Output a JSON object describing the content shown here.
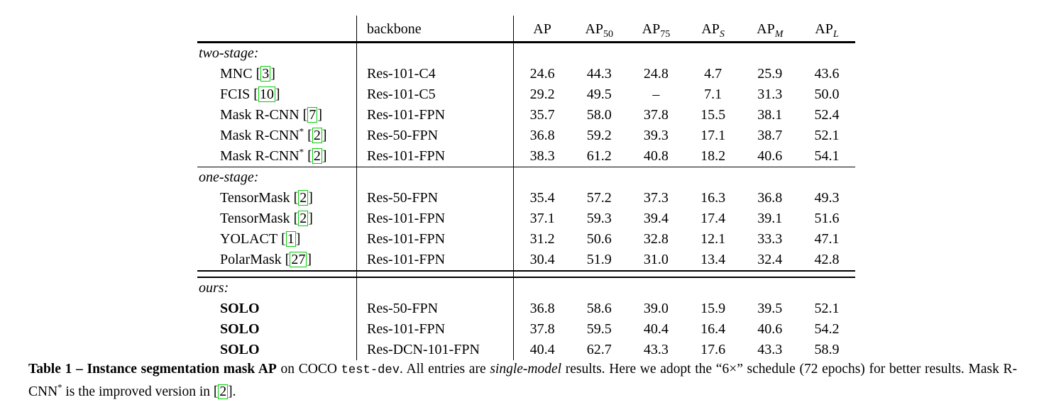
{
  "table": {
    "cite_open": "[",
    "cite_close": "]",
    "header": {
      "backbone": "backbone",
      "metrics": [
        {
          "base": "AP",
          "sub": ""
        },
        {
          "base": "AP",
          "sub": "50"
        },
        {
          "base": "AP",
          "sub": "75"
        },
        {
          "base": "AP",
          "sub": "S"
        },
        {
          "base": "AP",
          "sub": "M"
        },
        {
          "base": "AP",
          "sub": "L"
        }
      ]
    },
    "rows": [
      {
        "type": "section",
        "label": "two-stage:"
      },
      {
        "type": "data",
        "name": "MNC",
        "sup": "",
        "cite": "3",
        "backbone": "Res-101-C4",
        "v": [
          "24.6",
          "44.3",
          "24.8",
          "4.7",
          "25.9",
          "43.6"
        ]
      },
      {
        "type": "data",
        "name": "FCIS",
        "sup": "",
        "cite": "10",
        "backbone": "Res-101-C5",
        "v": [
          "29.2",
          "49.5",
          "–",
          "7.1",
          "31.3",
          "50.0"
        ]
      },
      {
        "type": "data",
        "name": "Mask R-CNN",
        "sup": "",
        "cite": "7",
        "backbone": "Res-101-FPN",
        "v": [
          "35.7",
          "58.0",
          "37.8",
          "15.5",
          "38.1",
          "52.4"
        ]
      },
      {
        "type": "data",
        "name": "Mask R-CNN",
        "sup": "*",
        "cite": "2",
        "backbone": "Res-50-FPN",
        "v": [
          "36.8",
          "59.2",
          "39.3",
          "17.1",
          "38.7",
          "52.1"
        ]
      },
      {
        "type": "data",
        "name": "Mask R-CNN",
        "sup": "*",
        "cite": "2",
        "backbone": "Res-101-FPN",
        "v": [
          "38.3",
          "61.2",
          "40.8",
          "18.2",
          "40.6",
          "54.1"
        ]
      },
      {
        "type": "section",
        "label": "one-stage:"
      },
      {
        "type": "data",
        "name": "TensorMask",
        "sup": "",
        "cite": "2",
        "backbone": "Res-50-FPN",
        "v": [
          "35.4",
          "57.2",
          "37.3",
          "16.3",
          "36.8",
          "49.3"
        ]
      },
      {
        "type": "data",
        "name": "TensorMask",
        "sup": "",
        "cite": "2",
        "backbone": "Res-101-FPN",
        "v": [
          "37.1",
          "59.3",
          "39.4",
          "17.4",
          "39.1",
          "51.6"
        ]
      },
      {
        "type": "data",
        "name": "YOLACT",
        "sup": "",
        "cite": "1",
        "backbone": "Res-101-FPN",
        "v": [
          "31.2",
          "50.6",
          "32.8",
          "12.1",
          "33.3",
          "47.1"
        ]
      },
      {
        "type": "data",
        "name": "PolarMask",
        "sup": "",
        "cite": "27",
        "backbone": "Res-101-FPN",
        "v": [
          "30.4",
          "51.9",
          "31.0",
          "13.4",
          "32.4",
          "42.8"
        ]
      },
      {
        "type": "section",
        "label": "ours:"
      },
      {
        "type": "data",
        "name": "SOLO",
        "sup": "",
        "cite": "",
        "backbone": "Res-50-FPN",
        "v": [
          "36.8",
          "58.6",
          "39.0",
          "15.9",
          "39.5",
          "52.1"
        ]
      },
      {
        "type": "data",
        "name": "SOLO",
        "sup": "",
        "cite": "",
        "backbone": "Res-101-FPN",
        "v": [
          "37.8",
          "59.5",
          "40.4",
          "16.4",
          "40.6",
          "54.2"
        ]
      },
      {
        "type": "data",
        "name": "SOLO",
        "sup": "",
        "cite": "",
        "backbone": "Res-DCN-101-FPN",
        "v": [
          "40.4",
          "62.7",
          "43.3",
          "17.6",
          "43.3",
          "58.9"
        ]
      }
    ]
  },
  "caption": {
    "segments": [
      {
        "text": "Table 1"
      },
      {
        "text": " – "
      },
      {
        "text": "Instance segmentation mask AP"
      },
      {
        "text": " on COCO "
      },
      {
        "text": "test-dev"
      },
      {
        "text": ". All entries are "
      },
      {
        "text": "single-model"
      },
      {
        "text": " results. Here we adopt the “6×” schedule (72 epochs) for better results. Mask R-CNN"
      },
      {
        "text": "*"
      },
      {
        "text": " is the improved version in "
      },
      {
        "text": "["
      },
      {
        "text": "2"
      },
      {
        "text": "]"
      },
      {
        "text": "."
      }
    ]
  }
}
